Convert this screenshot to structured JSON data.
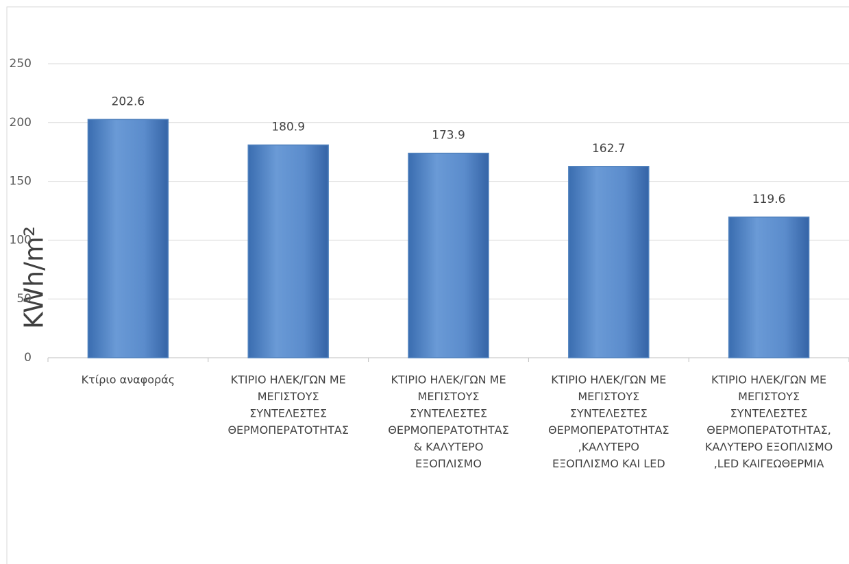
{
  "chart_data": {
    "type": "bar",
    "y_label": "KWh/m²",
    "categories": [
      [
        "Κτίριο αναφοράς"
      ],
      [
        "ΚΤΙΡΙΟ ΗΛΕΚ/ΓΩΝ  ΜΕ",
        "ΜΕΓΙΣΤΟΥΣ",
        "ΣΥΝΤΕΛΕΣΤΕΣ",
        "ΘΕΡΜΟΠΕΡΑΤΟΤΗΤΑΣ"
      ],
      [
        "ΚΤΙΡΙΟ ΗΛΕΚ/ΓΩΝ  ΜΕ",
        "ΜΕΓΙΣΤΟΥΣ",
        "ΣΥΝΤΕΛΕΣΤΕΣ",
        "ΘΕΡΜΟΠΕΡΑΤΟΤΗΤΑΣ",
        "&  ΚΑΛΥΤΕΡΟ",
        "ΕΞΟΠΛΙΣΜΟ"
      ],
      [
        "ΚΤΙΡΙΟ ΗΛΕΚ/ΓΩΝ  ΜΕ",
        "ΜΕΓΙΣΤΟΥΣ",
        "ΣΥΝΤΕΛΕΣΤΕΣ",
        "ΘΕΡΜΟΠΕΡΑΤΟΤΗΤΑΣ",
        ",ΚΑΛΥΤΕΡΟ",
        "ΕΞΟΠΛΙΣΜΟ ΚΑΙ LED"
      ],
      [
        "ΚΤΙΡΙΟ ΗΛΕΚ/ΓΩΝ  ΜΕ",
        "ΜΕΓΙΣΤΟΥΣ",
        "ΣΥΝΤΕΛΕΣΤΕΣ",
        "ΘΕΡΜΟΠΕΡΑΤΟΤΗΤΑΣ,",
        "ΚΑΛΥΤΕΡΟ ΕΞΟΠΛΙΣΜΟ",
        ",LED ΚΑΙΓΕΩΘΕΡΜΙΑ"
      ]
    ],
    "values": [
      202.6,
      180.9,
      173.9,
      162.7,
      119.6
    ],
    "color": "#4f81bd",
    "ylim": [
      0,
      250
    ],
    "yticks": [
      0,
      50,
      100,
      150,
      200,
      250
    ],
    "grid": true
  }
}
